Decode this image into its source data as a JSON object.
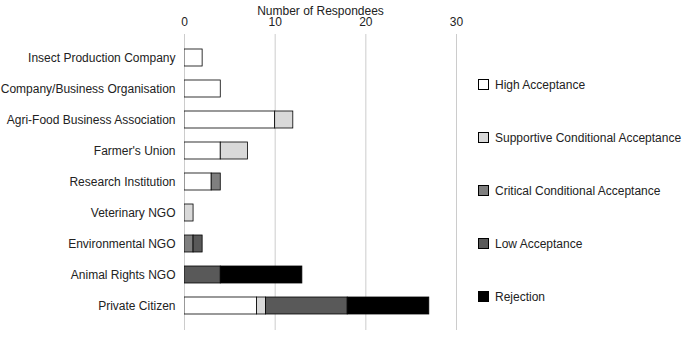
{
  "chart_data": {
    "type": "bar",
    "orientation": "horizontal",
    "stacked": true,
    "x_label": "Number of Respondees",
    "categories": [
      "Insect Production Company",
      "Company/Business Organisation",
      "Agri-Food Business Association",
      "Farmer's Union",
      "Research Institution",
      "Veterinary NGO",
      "Environmental NGO",
      "Animal Rights NGO",
      "Private Citizen"
    ],
    "series": [
      {
        "name": "High Acceptance",
        "color": "#ffffff",
        "values": [
          2,
          4,
          10,
          4,
          3,
          0,
          0,
          0,
          8
        ]
      },
      {
        "name": "Supportive Conditional Acceptance",
        "color": "#d9d9d9",
        "values": [
          0,
          0,
          2,
          3,
          0,
          1,
          0,
          0,
          1
        ]
      },
      {
        "name": "Critical Conditional Acceptance",
        "color": "#7f7f7f",
        "values": [
          0,
          0,
          0,
          0,
          1,
          0,
          1,
          0,
          0
        ]
      },
      {
        "name": "Low Acceptance",
        "color": "#595959",
        "values": [
          0,
          0,
          0,
          0,
          0,
          0,
          1,
          4,
          9
        ]
      },
      {
        "name": "Rejection",
        "color": "#000000",
        "values": [
          0,
          0,
          0,
          0,
          0,
          0,
          0,
          9,
          9
        ]
      }
    ],
    "xlim": [
      0,
      30
    ],
    "xticks": [
      0,
      10,
      20,
      30
    ],
    "grid": true,
    "legend": "right"
  }
}
